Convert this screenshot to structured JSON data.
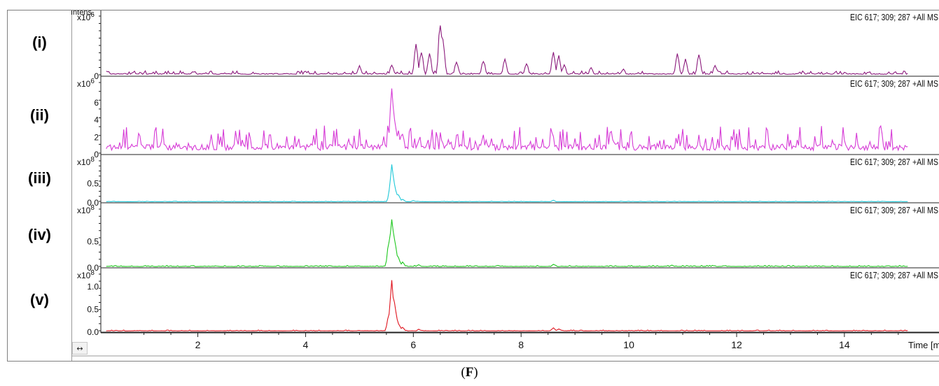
{
  "figure": {
    "caption_open": "(",
    "caption_letter": "F",
    "caption_close": ")",
    "scroll_icon": "↔"
  },
  "chart_data": {
    "type": "line",
    "x_unit_label": "Time [min]",
    "y_unit_label": "Intens.",
    "xlim": [
      0.2,
      15.6
    ],
    "x_ticks": [
      2,
      4,
      6,
      8,
      10,
      12,
      14
    ],
    "traces": [
      {
        "label": "(i)",
        "legend": "EIC 617; 309; 287 +All MS",
        "color": "#8b1a7c",
        "scale_label": "x10",
        "scale_exp": "6",
        "y_ticks": [
          "0"
        ],
        "ylim": [
          0,
          1.0
        ],
        "baseline": 0.02,
        "noise": 0.06,
        "x": [
          5.0,
          5.6,
          6.05,
          6.15,
          6.3,
          6.5,
          6.55,
          6.8,
          7.3,
          7.7,
          8.1,
          8.6,
          8.7,
          8.8,
          9.3,
          9.9,
          10.9,
          11.05,
          11.3,
          11.6
        ],
        "y": [
          0.18,
          0.2,
          0.55,
          0.45,
          0.4,
          1.0,
          0.62,
          0.25,
          0.28,
          0.3,
          0.22,
          0.42,
          0.35,
          0.2,
          0.15,
          0.12,
          0.38,
          0.3,
          0.4,
          0.18
        ]
      },
      {
        "label": "(ii)",
        "legend": "EIC 617; 309; 287 +All MS",
        "color": "#d63ad6",
        "scale_label": "x10",
        "scale_exp": "6",
        "y_ticks": [
          "6",
          "4",
          "2",
          "0"
        ],
        "ylim": [
          0,
          8.2
        ],
        "baseline": 0.05,
        "noise": 0.35,
        "x": [
          4.8,
          5.55,
          5.6,
          5.65,
          5.72,
          5.8,
          6.1,
          6.6,
          7.4,
          8.65,
          9.4,
          11.2
        ],
        "y": [
          1.6,
          2.5,
          8.0,
          4.5,
          3.0,
          1.2,
          1.8,
          1.0,
          0.8,
          1.0,
          0.8,
          0.7
        ]
      },
      {
        "label": "(iii)",
        "legend": "EIC 617; 309; 287 +All MS",
        "color": "#1fc8d8",
        "scale_label": "x10",
        "scale_exp": "8",
        "y_ticks": [
          "0.5",
          "0.0"
        ],
        "ylim": [
          0,
          1.05
        ],
        "baseline": 0.01,
        "noise": 0.012,
        "x": [
          5.58,
          5.6,
          5.63,
          5.67,
          5.72,
          5.8,
          6.0,
          8.6
        ],
        "y": [
          0.5,
          1.0,
          0.6,
          0.35,
          0.2,
          0.08,
          0.04,
          0.05
        ]
      },
      {
        "label": "(iv)",
        "legend": "EIC 617; 309; 287 +All MS",
        "color": "#1ec81e",
        "scale_label": "x10",
        "scale_exp": "8",
        "y_ticks": [
          "0.5",
          "0.0"
        ],
        "ylim": [
          0,
          1.1
        ],
        "baseline": 0.01,
        "noise": 0.02,
        "x": [
          5.55,
          5.6,
          5.63,
          5.67,
          5.72,
          5.8,
          6.1,
          8.6,
          10.8
        ],
        "y": [
          0.55,
          1.05,
          0.7,
          0.4,
          0.2,
          0.1,
          0.05,
          0.06,
          0.04
        ]
      },
      {
        "label": "(v)",
        "legend": "EIC 617; 309; 287 +All MS",
        "color": "#e0141e",
        "scale_label": "x10",
        "scale_exp": "8",
        "y_ticks": [
          "1.0",
          "0.5",
          "0.0"
        ],
        "ylim": [
          0,
          1.25
        ],
        "baseline": 0.01,
        "noise": 0.015,
        "x": [
          5.55,
          5.6,
          5.63,
          5.67,
          5.72,
          5.8,
          6.1,
          8.6,
          8.7
        ],
        "y": [
          0.45,
          1.2,
          0.8,
          0.45,
          0.2,
          0.1,
          0.05,
          0.08,
          0.06
        ]
      }
    ]
  }
}
